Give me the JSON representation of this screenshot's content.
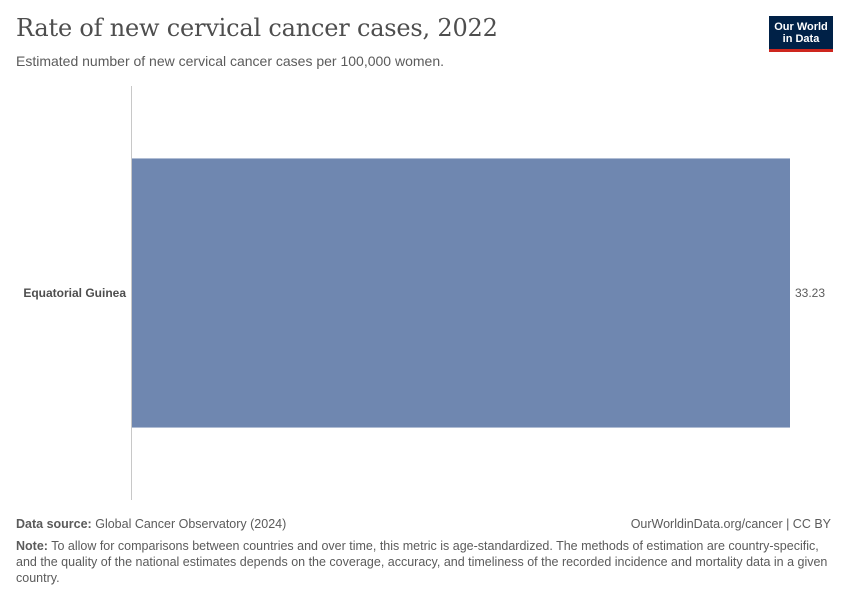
{
  "header": {
    "title": "Rate of new cervical cancer cases, 2022",
    "subtitle": "Estimated number of new cervical cancer cases per 100,000 women.",
    "logo_line1": "Our World",
    "logo_line2": "in Data"
  },
  "chart_data": {
    "type": "bar",
    "orientation": "horizontal",
    "categories": [
      "Equatorial Guinea"
    ],
    "values": [
      33.23
    ],
    "value_labels": [
      "33.23"
    ],
    "xlim": [
      0,
      33.23
    ],
    "color": "#6f87b0"
  },
  "footer": {
    "source_label": "Data source:",
    "source_text": "Global Cancer Observatory (2024)",
    "link_text": "OurWorldinData.org/cancer | CC BY",
    "note_label": "Note:",
    "note_text": "To allow for comparisons between countries and over time, this metric is age-standardized. The methods of estimation are country-specific, and the quality of the national estimates depends on the coverage, accuracy, and timeliness of the recorded incidence and mortality data in a given country."
  }
}
